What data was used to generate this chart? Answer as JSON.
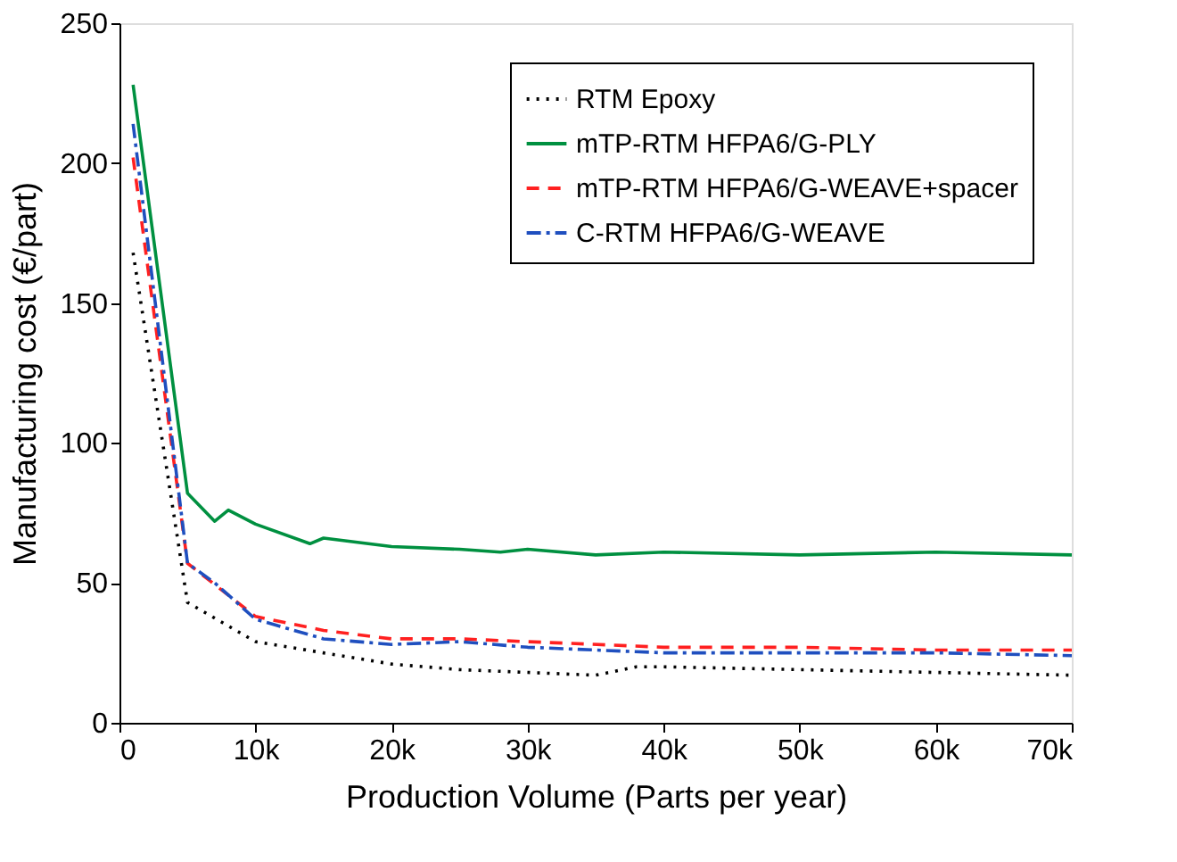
{
  "chart_data": {
    "type": "line",
    "xlabel": "Production Volume (Parts per year)",
    "ylabel": "Manufacturing cost (€/part)",
    "xlim": [
      0,
      70000
    ],
    "ylim": [
      0,
      250
    ],
    "xticks": [
      0,
      {
        "value": 10000,
        "label": "10k"
      },
      {
        "value": 20000,
        "label": "20k"
      },
      {
        "value": 30000,
        "label": "30k"
      },
      {
        "value": 40000,
        "label": "40k"
      },
      {
        "value": 50000,
        "label": "50k"
      },
      {
        "value": 60000,
        "label": "60k"
      },
      {
        "value": 70000,
        "label": "70k"
      }
    ],
    "yticks": [
      0,
      50,
      100,
      150,
      200,
      250
    ],
    "grid": false,
    "legend": "top right",
    "marker": "none",
    "series": [
      {
        "name": "RTM Epoxy",
        "color": "#000000",
        "line_style": "dotted",
        "x": [
          1000,
          5000,
          10000,
          15000,
          20000,
          25000,
          30000,
          35000,
          38000,
          40000,
          50000,
          60000,
          70000
        ],
        "values": [
          168,
          43,
          29,
          25,
          21,
          19,
          18,
          17,
          20,
          20,
          19,
          18,
          17
        ]
      },
      {
        "name": "mTP-RTM HFPA6/G-PLY",
        "color": "#009040",
        "line_style": "solid",
        "x": [
          1000,
          5000,
          7000,
          8000,
          10000,
          14000,
          15000,
          20000,
          25000,
          28000,
          30000,
          35000,
          40000,
          50000,
          60000,
          70000
        ],
        "values": [
          228,
          82,
          72,
          76,
          71,
          64,
          66,
          63,
          62,
          61,
          62,
          60,
          61,
          60,
          61,
          60
        ]
      },
      {
        "name": "mTP-RTM HFPA6/G-WEAVE+spacer",
        "color": "#ff2020",
        "line_style": "dashed",
        "x": [
          1000,
          5000,
          10000,
          15000,
          20000,
          25000,
          30000,
          40000,
          50000,
          60000,
          70000
        ],
        "values": [
          202,
          57,
          38,
          33,
          30,
          30,
          29,
          27,
          27,
          26,
          26
        ]
      },
      {
        "name": "C-RTM HFPA6/G-WEAVE",
        "color": "#1f4fbf",
        "line_style": "dashdot",
        "x": [
          1000,
          5000,
          7000,
          10000,
          15000,
          20000,
          25000,
          30000,
          40000,
          50000,
          60000,
          70000
        ],
        "values": [
          214,
          57,
          50,
          37,
          30,
          28,
          29,
          27,
          25,
          25,
          25,
          24
        ]
      }
    ]
  }
}
